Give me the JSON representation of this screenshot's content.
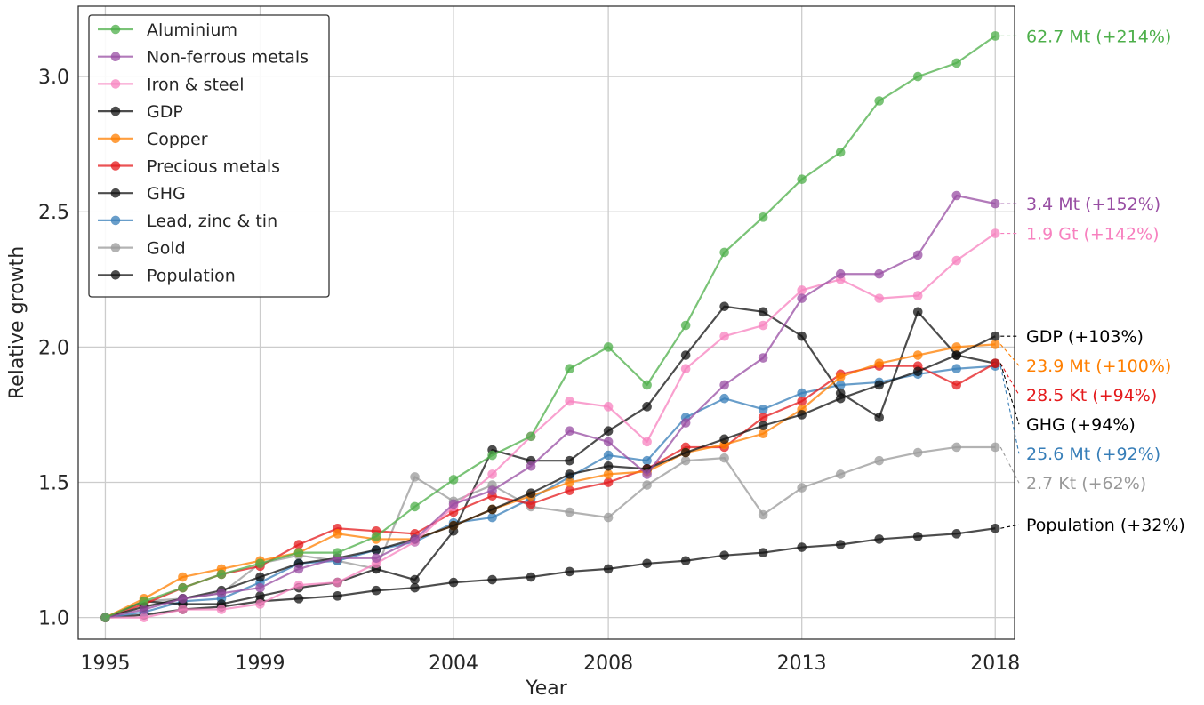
{
  "chart_data": {
    "type": "line",
    "title": "",
    "xlabel": "Year",
    "ylabel": "Relative growth",
    "xlim": [
      1994.3,
      2018.5
    ],
    "ylim": [
      0.92,
      3.26
    ],
    "x_ticks": [
      1995,
      1999,
      2004,
      2008,
      2013,
      2018
    ],
    "y_ticks": [
      1.0,
      1.5,
      2.0,
      2.5,
      3.0
    ],
    "grid": true,
    "legend_position": "upper-left",
    "x": [
      1995,
      1996,
      1997,
      1998,
      1999,
      2000,
      2001,
      2002,
      2003,
      2004,
      2005,
      2006,
      2007,
      2008,
      2009,
      2010,
      2011,
      2012,
      2013,
      2014,
      2015,
      2016,
      2017,
      2018
    ],
    "series": [
      {
        "name": "Aluminium",
        "color": "#4daf4a",
        "values": [
          1.0,
          1.06,
          1.11,
          1.16,
          1.2,
          1.24,
          1.24,
          1.3,
          1.41,
          1.51,
          1.6,
          1.67,
          1.92,
          2.0,
          1.86,
          2.08,
          2.35,
          2.48,
          2.62,
          2.72,
          2.91,
          3.0,
          3.05,
          3.15
        ],
        "end_label": "62.7 Mt (+214%)"
      },
      {
        "name": "Non-ferrous metals",
        "color": "#984ea3",
        "values": [
          1.0,
          1.03,
          1.07,
          1.09,
          1.11,
          1.18,
          1.22,
          1.22,
          1.29,
          1.42,
          1.47,
          1.56,
          1.69,
          1.65,
          1.53,
          1.72,
          1.86,
          1.96,
          2.18,
          2.27,
          2.27,
          2.34,
          2.56,
          2.53
        ],
        "end_label": "3.4 Mt (+152%)"
      },
      {
        "name": "Iron & steel",
        "color": "#f781bf",
        "values": [
          1.0,
          1.0,
          1.03,
          1.03,
          1.05,
          1.12,
          1.13,
          1.2,
          1.28,
          1.41,
          1.53,
          1.67,
          1.8,
          1.78,
          1.65,
          1.92,
          2.04,
          2.08,
          2.21,
          2.25,
          2.18,
          2.19,
          2.32,
          2.42
        ],
        "end_label": "1.9 Gt (+142%)"
      },
      {
        "name": "GDP",
        "color": "#111111",
        "values": [
          1.0,
          1.04,
          1.07,
          1.1,
          1.15,
          1.2,
          1.22,
          1.25,
          1.29,
          1.34,
          1.4,
          1.46,
          1.53,
          1.56,
          1.55,
          1.61,
          1.66,
          1.71,
          1.75,
          1.81,
          1.86,
          1.91,
          1.97,
          2.04
        ],
        "end_label": "GDP (+103%)"
      },
      {
        "name": "Copper",
        "color": "#ff7f00",
        "values": [
          1.0,
          1.07,
          1.15,
          1.18,
          1.21,
          1.24,
          1.31,
          1.29,
          1.29,
          1.34,
          1.4,
          1.45,
          1.5,
          1.53,
          1.54,
          1.61,
          1.64,
          1.68,
          1.77,
          1.89,
          1.94,
          1.97,
          2.0,
          2.01
        ],
        "end_label": "23.9 Mt (+100%)"
      },
      {
        "name": "Precious metals",
        "color": "#e41a1c",
        "values": [
          1.0,
          1.05,
          1.11,
          1.16,
          1.19,
          1.27,
          1.33,
          1.32,
          1.31,
          1.39,
          1.45,
          1.42,
          1.47,
          1.5,
          1.55,
          1.63,
          1.63,
          1.74,
          1.8,
          1.9,
          1.93,
          1.93,
          1.86,
          1.94
        ],
        "end_label": "28.5 Kt (+94%)"
      },
      {
        "name": "GHG",
        "color": "#111111",
        "values": [
          1.0,
          1.06,
          1.05,
          1.05,
          1.08,
          1.11,
          1.13,
          1.18,
          1.14,
          1.32,
          1.62,
          1.58,
          1.58,
          1.69,
          1.78,
          1.97,
          2.15,
          2.13,
          2.04,
          1.83,
          1.74,
          2.13,
          1.97,
          1.94
        ],
        "end_label": "GHG (+94%)"
      },
      {
        "name": "Lead, zinc & tin",
        "color": "#377eb8",
        "values": [
          1.0,
          1.02,
          1.06,
          1.07,
          1.13,
          1.2,
          1.21,
          1.25,
          1.28,
          1.35,
          1.37,
          1.44,
          1.52,
          1.6,
          1.58,
          1.74,
          1.81,
          1.77,
          1.83,
          1.86,
          1.87,
          1.9,
          1.92,
          1.93
        ],
        "end_label": "25.6 Mt (+92%)"
      },
      {
        "name": "Gold",
        "color": "#999999",
        "values": [
          1.0,
          1.06,
          1.07,
          1.09,
          1.2,
          1.23,
          1.21,
          1.18,
          1.52,
          1.43,
          1.49,
          1.41,
          1.39,
          1.37,
          1.49,
          1.58,
          1.59,
          1.38,
          1.48,
          1.53,
          1.58,
          1.61,
          1.63,
          1.63
        ],
        "end_label": "2.7 Kt (+62%)"
      },
      {
        "name": "Population",
        "color": "#111111",
        "values": [
          1.0,
          1.01,
          1.03,
          1.04,
          1.06,
          1.07,
          1.08,
          1.1,
          1.11,
          1.13,
          1.14,
          1.15,
          1.17,
          1.18,
          1.2,
          1.21,
          1.23,
          1.24,
          1.26,
          1.27,
          1.29,
          1.3,
          1.31,
          1.33
        ],
        "end_label": "Population (+32%)"
      }
    ]
  }
}
